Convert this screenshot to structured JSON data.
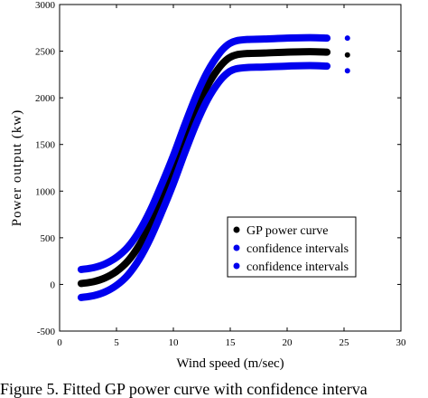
{
  "caption": "Figure 5. Fitted GP power curve with confidence interva",
  "chart_data": {
    "type": "scatter",
    "xlabel": "Wind speed (m/sec)",
    "ylabel": "Power output (kw)",
    "xlim": [
      0,
      30
    ],
    "ylim": [
      -500,
      3000
    ],
    "xticks": [
      0,
      5,
      10,
      15,
      20,
      25,
      30
    ],
    "yticks": [
      -500,
      0,
      500,
      1000,
      1500,
      2000,
      2500,
      3000
    ],
    "grid": false,
    "legend": {
      "position": "center-right",
      "entries": [
        "GP power curve",
        "confidence intervals",
        "confidence intervals"
      ]
    },
    "series": [
      {
        "name": "GP power curve",
        "color": "#000000",
        "x": [
          1.9,
          3,
          4,
          5,
          6,
          7,
          8,
          9,
          10,
          11,
          12,
          13,
          14,
          14.8,
          15.5,
          16.5,
          18,
          20,
          22,
          23.5,
          25.3
        ],
        "y": [
          10,
          30,
          70,
          140,
          250,
          420,
          650,
          930,
          1230,
          1560,
          1870,
          2130,
          2320,
          2420,
          2460,
          2475,
          2480,
          2490,
          2495,
          2490,
          2460
        ]
      },
      {
        "name": "confidence intervals",
        "color": "#0000ee",
        "x": [
          1.9,
          3,
          4,
          5,
          6,
          7,
          8,
          9,
          10,
          11,
          12,
          13,
          14,
          14.8,
          15.5,
          16.5,
          18,
          20,
          22,
          23.5,
          25.3
        ],
        "y": [
          160,
          180,
          220,
          290,
          400,
          570,
          800,
          1080,
          1380,
          1710,
          2020,
          2280,
          2470,
          2570,
          2610,
          2625,
          2630,
          2640,
          2645,
          2640,
          2640
        ]
      },
      {
        "name": "confidence intervals",
        "color": "#0000ee",
        "x": [
          1.9,
          3,
          4,
          5,
          6,
          7,
          8,
          9,
          10,
          11,
          12,
          13,
          14,
          14.8,
          15.5,
          16.5,
          18,
          20,
          22,
          23.5,
          25.3
        ],
        "y": [
          -140,
          -120,
          -80,
          -10,
          100,
          270,
          500,
          780,
          1080,
          1410,
          1720,
          1980,
          2170,
          2270,
          2310,
          2325,
          2330,
          2340,
          2345,
          2340,
          2290
        ]
      }
    ]
  }
}
